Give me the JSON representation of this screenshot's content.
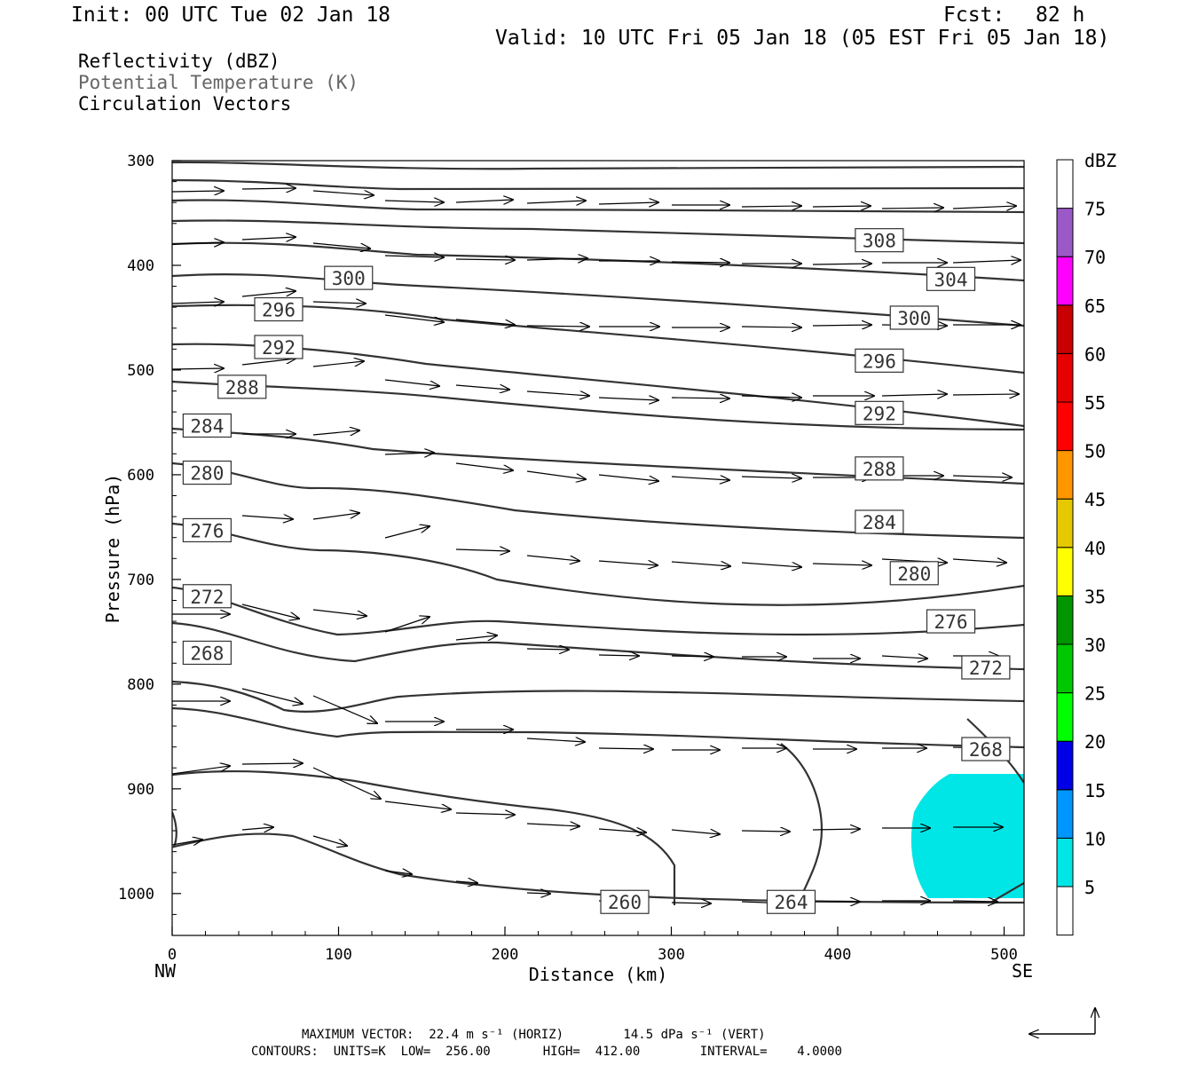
{
  "header": {
    "init": "Init: 00 UTC Tue 02 Jan 18",
    "fcst_label": "Fcst:",
    "fcst_value": "82 h",
    "valid": "Valid: 10 UTC Fri 05 Jan 18 (05 EST Fri 05 Jan 18)"
  },
  "fields": {
    "reflectivity": "Reflectivity (dBZ)",
    "theta": "Potential Temperature (K)",
    "vectors": "Circulation Vectors"
  },
  "footer": {
    "max_vector": "MAXIMUM VECTOR:  22.4 m s⁻¹ (HORIZ)        14.5 dPa s⁻¹ (VERT)",
    "contours": "CONTOURS:  UNITS=K  LOW=  256.00       HIGH=  412.00        INTERVAL=    4.0000"
  },
  "colors": {
    "contour": "#333333",
    "echo": "#00e6e6"
  },
  "chart_data": {
    "type": "cross-section",
    "xlabel": "Distance (km)",
    "ylabel": "Pressure (hPa)",
    "xlim": [
      0,
      512
    ],
    "ylim": [
      1040,
      300
    ],
    "x_ticks": [
      0,
      100,
      200,
      300,
      400,
      500
    ],
    "y_ticks": [
      300,
      400,
      500,
      600,
      700,
      800,
      900,
      1000
    ],
    "x_end_labels": {
      "left": "NW",
      "right": "SE"
    },
    "colorbar": {
      "title": "dBZ",
      "levels": [
        5,
        10,
        15,
        20,
        25,
        30,
        35,
        40,
        45,
        50,
        55,
        60,
        65,
        70,
        75
      ],
      "colors": [
        "#ffffff",
        "#00e6e6",
        "#0096ff",
        "#0000e6",
        "#00ff00",
        "#00c800",
        "#009600",
        "#ffff00",
        "#e6c800",
        "#ff9600",
        "#ff0000",
        "#e60000",
        "#c80000",
        "#ff00ff",
        "#9b59c8",
        "#ffffff"
      ]
    },
    "contour_labels": [
      {
        "label": "308",
        "x": 425,
        "p": 376
      },
      {
        "label": "300",
        "x": 106,
        "p": 412
      },
      {
        "label": "304",
        "x": 468,
        "p": 413
      },
      {
        "label": "296",
        "x": 64,
        "p": 442
      },
      {
        "label": "300",
        "x": 446,
        "p": 450
      },
      {
        "label": "292",
        "x": 64,
        "p": 478
      },
      {
        "label": "296",
        "x": 425,
        "p": 491
      },
      {
        "label": "288",
        "x": 42,
        "p": 516
      },
      {
        "label": "292",
        "x": 425,
        "p": 541
      },
      {
        "label": "284",
        "x": 21,
        "p": 553
      },
      {
        "label": "288",
        "x": 425,
        "p": 594
      },
      {
        "label": "280",
        "x": 21,
        "p": 598
      },
      {
        "label": "284",
        "x": 425,
        "p": 645
      },
      {
        "label": "276",
        "x": 21,
        "p": 653
      },
      {
        "label": "280",
        "x": 446,
        "p": 694
      },
      {
        "label": "272",
        "x": 21,
        "p": 716
      },
      {
        "label": "276",
        "x": 468,
        "p": 740
      },
      {
        "label": "268",
        "x": 21,
        "p": 770
      },
      {
        "label": "272",
        "x": 489,
        "p": 784
      },
      {
        "label": "268",
        "x": 489,
        "p": 862
      },
      {
        "label": "260",
        "x": 272,
        "p": 1008
      },
      {
        "label": "264",
        "x": 372,
        "p": 1008
      }
    ],
    "legend_vector": "reference arrow"
  }
}
